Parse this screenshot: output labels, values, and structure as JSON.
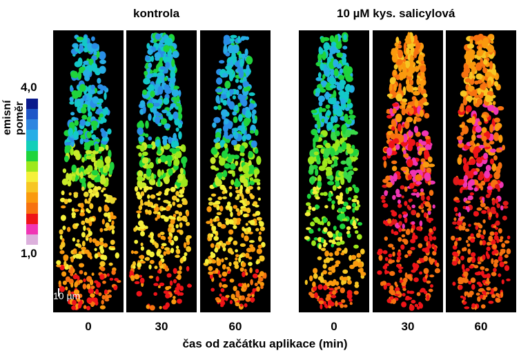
{
  "groups": {
    "control": "kontrola",
    "treated": "10 µM kys. salicylová"
  },
  "color_scale": {
    "title": "emisní poměr",
    "max_label": "4,0",
    "min_label": "1,0",
    "colors": [
      "#0a1a8c",
      "#1e56c8",
      "#2f86e0",
      "#27aee6",
      "#13cfb9",
      "#1fd43c",
      "#9ee81c",
      "#f5f03a",
      "#f7c623",
      "#fa9a0e",
      "#f77210",
      "#ef1418",
      "#f035b4",
      "#dcb0dc"
    ]
  },
  "scale_bar_label": "10 µm",
  "panels": [
    {
      "time": "0",
      "group": "kontrola"
    },
    {
      "time": "30",
      "group": "kontrola"
    },
    {
      "time": "60",
      "group": "kontrola"
    },
    {
      "time": "0",
      "group": "10 µM kys. salicylová"
    },
    {
      "time": "30",
      "group": "10 µM kys. salicylová"
    },
    {
      "time": "60",
      "group": "10 µM kys. salicylová"
    }
  ],
  "x_axis_label": "čas od začátku aplikace (min)"
}
